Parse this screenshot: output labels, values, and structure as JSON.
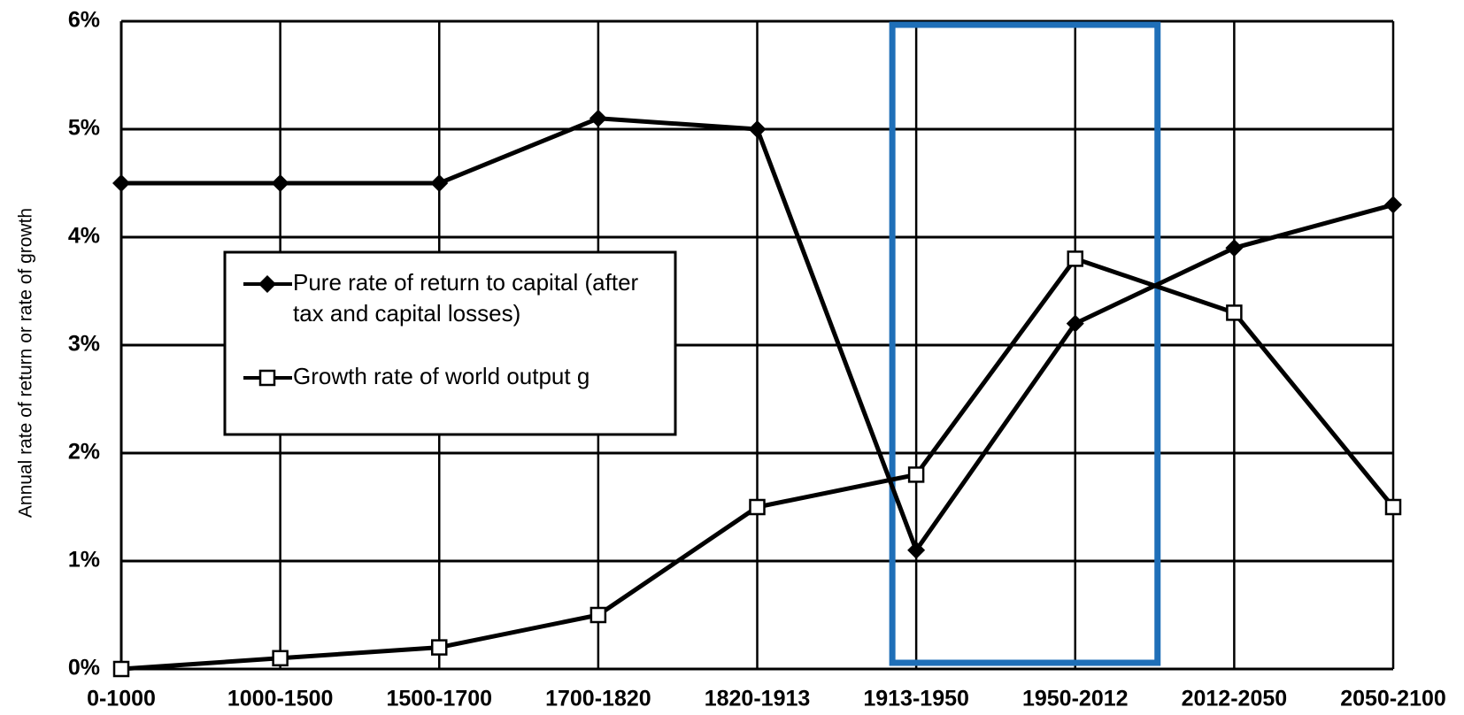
{
  "chart_data": {
    "type": "line",
    "y_label": "Annual rate of return or rate of growth",
    "categories": [
      "0-1000",
      "1000-1500",
      "1500-1700",
      "1700-1820",
      "1820-1913",
      "1913-1950",
      "1950-2012",
      "2012-2050",
      "2050-2100"
    ],
    "series": [
      {
        "name": "Pure rate of return to capital (after tax and capital losses)",
        "color": "#000000",
        "marker": "diamond",
        "values": [
          4.5,
          4.5,
          4.5,
          5.1,
          5.0,
          1.1,
          3.2,
          3.9,
          4.3
        ]
      },
      {
        "name": "Growth rate of world output g",
        "color": "#000000",
        "marker": "square",
        "values": [
          0,
          0.1,
          0.2,
          0.5,
          1.5,
          1.8,
          3.8,
          3.3,
          1.5
        ]
      }
    ],
    "ylim": [
      0,
      6
    ],
    "yticks": [
      {
        "value": 0,
        "label": "0%"
      },
      {
        "value": 1,
        "label": "1%"
      },
      {
        "value": 2,
        "label": "2%"
      },
      {
        "value": 3,
        "label": "3%"
      },
      {
        "value": 4,
        "label": "4%"
      },
      {
        "value": 5,
        "label": "5%"
      },
      {
        "value": 6,
        "label": "6%"
      }
    ],
    "grid": true
  }
}
